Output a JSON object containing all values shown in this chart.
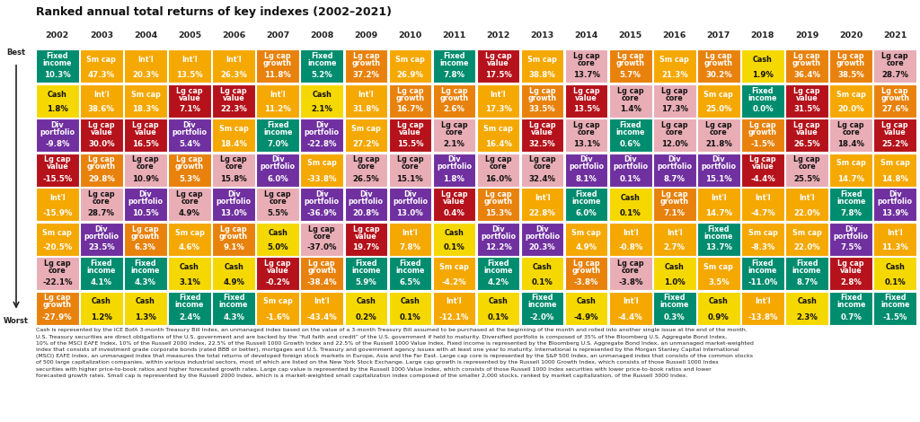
{
  "title": "Ranked annual total returns of key indexes (2002–2021)",
  "years": [
    "2002",
    "2003",
    "2004",
    "2005",
    "2006",
    "2007",
    "2008",
    "2009",
    "2010",
    "2011",
    "2012",
    "2013",
    "2014",
    "2015",
    "2016",
    "2017",
    "2018",
    "2019",
    "2020",
    "2021"
  ],
  "cells": [
    [
      {
        "label": "Fixed\nincome",
        "value": "10.3%",
        "color": "#008c6e"
      },
      {
        "label": "Sm cap",
        "value": "47.3%",
        "color": "#f5a800"
      },
      {
        "label": "Int'l",
        "value": "20.3%",
        "color": "#f5a800"
      },
      {
        "label": "Int'l",
        "value": "13.5%",
        "color": "#f5a800"
      },
      {
        "label": "Int'l",
        "value": "26.3%",
        "color": "#f5a800"
      },
      {
        "label": "Lg cap\ngrowth",
        "value": "11.8%",
        "color": "#e8820c"
      },
      {
        "label": "Fixed\nincome",
        "value": "5.2%",
        "color": "#008c6e"
      },
      {
        "label": "Lg cap\ngrowth",
        "value": "37.2%",
        "color": "#e8820c"
      },
      {
        "label": "Sm cap",
        "value": "26.9%",
        "color": "#f5a800"
      },
      {
        "label": "Fixed\nincome",
        "value": "7.8%",
        "color": "#008c6e"
      },
      {
        "label": "Lg cap\nvalue",
        "value": "17.5%",
        "color": "#b5121b"
      },
      {
        "label": "Sm cap",
        "value": "38.8%",
        "color": "#f5a800"
      },
      {
        "label": "Lg cap\ncore",
        "value": "13.7%",
        "color": "#e8adb5"
      },
      {
        "label": "Lg cap\ngrowth",
        "value": "5.7%",
        "color": "#e8820c"
      },
      {
        "label": "Sm cap",
        "value": "21.3%",
        "color": "#f5a800"
      },
      {
        "label": "Lg cap\ngrowth",
        "value": "30.2%",
        "color": "#e8820c"
      },
      {
        "label": "Cash",
        "value": "1.9%",
        "color": "#f5d800"
      },
      {
        "label": "Lg cap\ngrowth",
        "value": "36.4%",
        "color": "#e8820c"
      },
      {
        "label": "Lg cap\ngrowth",
        "value": "38.5%",
        "color": "#e8820c"
      },
      {
        "label": "Lg cap\ncore",
        "value": "28.7%",
        "color": "#e8adb5"
      }
    ],
    [
      {
        "label": "Cash",
        "value": "1.8%",
        "color": "#f5d800"
      },
      {
        "label": "Int'l",
        "value": "38.6%",
        "color": "#f5a800"
      },
      {
        "label": "Sm cap",
        "value": "18.3%",
        "color": "#f5a800"
      },
      {
        "label": "Lg cap\nvalue",
        "value": "7.1%",
        "color": "#b5121b"
      },
      {
        "label": "Lg cap\nvalue",
        "value": "22.3%",
        "color": "#b5121b"
      },
      {
        "label": "Int'l",
        "value": "11.2%",
        "color": "#f5a800"
      },
      {
        "label": "Cash",
        "value": "2.1%",
        "color": "#f5d800"
      },
      {
        "label": "Int'l",
        "value": "31.8%",
        "color": "#f5a800"
      },
      {
        "label": "Lg cap\ngrowth",
        "value": "16.7%",
        "color": "#e8820c"
      },
      {
        "label": "Lg cap\ngrowth",
        "value": "2.6%",
        "color": "#e8820c"
      },
      {
        "label": "Int'l",
        "value": "17.3%",
        "color": "#f5a800"
      },
      {
        "label": "Lg cap\ngrowth",
        "value": "33.5%",
        "color": "#e8820c"
      },
      {
        "label": "Lg cap\nvalue",
        "value": "13.5%",
        "color": "#b5121b"
      },
      {
        "label": "Lg cap\ncore",
        "value": "1.4%",
        "color": "#e8adb5"
      },
      {
        "label": "Lg cap\ncore",
        "value": "17.3%",
        "color": "#e8adb5"
      },
      {
        "label": "Sm cap",
        "value": "25.0%",
        "color": "#f5a800"
      },
      {
        "label": "Fixed\nincome",
        "value": "0.0%",
        "color": "#008c6e"
      },
      {
        "label": "Lg cap\nvalue",
        "value": "31.5%",
        "color": "#b5121b"
      },
      {
        "label": "Sm cap",
        "value": "20.0%",
        "color": "#f5a800"
      },
      {
        "label": "Lg cap\ngrowth",
        "value": "27.6%",
        "color": "#e8820c"
      }
    ],
    [
      {
        "label": "Div\nportfolio",
        "value": "-9.8%",
        "color": "#7030a0"
      },
      {
        "label": "Lg cap\nvalue",
        "value": "30.0%",
        "color": "#b5121b"
      },
      {
        "label": "Lg cap\nvalue",
        "value": "16.5%",
        "color": "#b5121b"
      },
      {
        "label": "Div\nportfolio",
        "value": "5.4%",
        "color": "#7030a0"
      },
      {
        "label": "Sm cap",
        "value": "18.4%",
        "color": "#f5a800"
      },
      {
        "label": "Fixed\nincome",
        "value": "7.0%",
        "color": "#008c6e"
      },
      {
        "label": "Div\nportfolio",
        "value": "-22.8%",
        "color": "#7030a0"
      },
      {
        "label": "Sm cap",
        "value": "27.2%",
        "color": "#f5a800"
      },
      {
        "label": "Lg cap\nvalue",
        "value": "15.5%",
        "color": "#b5121b"
      },
      {
        "label": "Lg cap\ncore",
        "value": "2.1%",
        "color": "#e8adb5"
      },
      {
        "label": "Sm cap",
        "value": "16.4%",
        "color": "#f5a800"
      },
      {
        "label": "Lg cap\nvalue",
        "value": "32.5%",
        "color": "#b5121b"
      },
      {
        "label": "Lg cap\ncore",
        "value": "13.1%",
        "color": "#e8adb5"
      },
      {
        "label": "Fixed\nincome",
        "value": "0.6%",
        "color": "#008c6e"
      },
      {
        "label": "Lg cap\ncore",
        "value": "12.0%",
        "color": "#e8adb5"
      },
      {
        "label": "Lg cap\ncore",
        "value": "21.8%",
        "color": "#e8adb5"
      },
      {
        "label": "Lg cap\ngrowth",
        "value": "-1.5%",
        "color": "#e8820c"
      },
      {
        "label": "Lg cap\nvalue",
        "value": "26.5%",
        "color": "#b5121b"
      },
      {
        "label": "Lg cap\ncore",
        "value": "18.4%",
        "color": "#e8adb5"
      },
      {
        "label": "Lg cap\nvalue",
        "value": "25.2%",
        "color": "#b5121b"
      }
    ],
    [
      {
        "label": "Lg cap\nvalue",
        "value": "-15.5%",
        "color": "#b5121b"
      },
      {
        "label": "Lg cap\ngrowth",
        "value": "29.8%",
        "color": "#e8820c"
      },
      {
        "label": "Lg cap\ncore",
        "value": "10.9%",
        "color": "#e8adb5"
      },
      {
        "label": "Lg cap\ngrowth",
        "value": "5.3%",
        "color": "#e8820c"
      },
      {
        "label": "Lg cap\ncore",
        "value": "15.8%",
        "color": "#e8adb5"
      },
      {
        "label": "Div\nportfolio",
        "value": "6.0%",
        "color": "#7030a0"
      },
      {
        "label": "Sm cap",
        "value": "-33.8%",
        "color": "#f5a800"
      },
      {
        "label": "Lg cap\ncore",
        "value": "26.5%",
        "color": "#e8adb5"
      },
      {
        "label": "Lg cap\ncore",
        "value": "15.1%",
        "color": "#e8adb5"
      },
      {
        "label": "Div\nportfolio",
        "value": "1.8%",
        "color": "#7030a0"
      },
      {
        "label": "Lg cap\ncore",
        "value": "16.0%",
        "color": "#e8adb5"
      },
      {
        "label": "Lg cap\ncore",
        "value": "32.4%",
        "color": "#e8adb5"
      },
      {
        "label": "Div\nportfolio",
        "value": "8.1%",
        "color": "#7030a0"
      },
      {
        "label": "Div\nportfolio",
        "value": "0.1%",
        "color": "#7030a0"
      },
      {
        "label": "Div\nportfolio",
        "value": "8.7%",
        "color": "#7030a0"
      },
      {
        "label": "Div\nportfolio",
        "value": "15.1%",
        "color": "#7030a0"
      },
      {
        "label": "Lg cap\nvalue",
        "value": "-4.4%",
        "color": "#b5121b"
      },
      {
        "label": "Lg cap\ncore",
        "value": "25.5%",
        "color": "#e8adb5"
      },
      {
        "label": "Sm cap",
        "value": "14.7%",
        "color": "#f5a800"
      },
      {
        "label": "Sm cap",
        "value": "14.8%",
        "color": "#f5a800"
      }
    ],
    [
      {
        "label": "Int'l",
        "value": "-15.9%",
        "color": "#f5a800"
      },
      {
        "label": "Lg cap\ncore",
        "value": "28.7%",
        "color": "#e8adb5"
      },
      {
        "label": "Div\nportfolio",
        "value": "10.5%",
        "color": "#7030a0"
      },
      {
        "label": "Lg cap\ncore",
        "value": "4.9%",
        "color": "#e8adb5"
      },
      {
        "label": "Div\nportfolio",
        "value": "13.0%",
        "color": "#7030a0"
      },
      {
        "label": "Lg cap\ncore",
        "value": "5.5%",
        "color": "#e8adb5"
      },
      {
        "label": "Div\nportfolio",
        "value": "-36.9%",
        "color": "#7030a0"
      },
      {
        "label": "Div\nportfolio",
        "value": "20.8%",
        "color": "#7030a0"
      },
      {
        "label": "Div\nportfolio",
        "value": "13.0%",
        "color": "#7030a0"
      },
      {
        "label": "Lg cap\nvalue",
        "value": "0.4%",
        "color": "#b5121b"
      },
      {
        "label": "Lg cap\ngrowth",
        "value": "15.3%",
        "color": "#e8820c"
      },
      {
        "label": "Int'l",
        "value": "22.8%",
        "color": "#f5a800"
      },
      {
        "label": "Fixed\nincome",
        "value": "6.0%",
        "color": "#008c6e"
      },
      {
        "label": "Cash",
        "value": "0.1%",
        "color": "#f5d800"
      },
      {
        "label": "Lg cap\ngrowth",
        "value": "7.1%",
        "color": "#e8820c"
      },
      {
        "label": "Int'l",
        "value": "14.7%",
        "color": "#f5a800"
      },
      {
        "label": "Int'l",
        "value": "-4.7%",
        "color": "#f5a800"
      },
      {
        "label": "Int'l",
        "value": "22.0%",
        "color": "#f5a800"
      },
      {
        "label": "Fixed\nincome",
        "value": "7.8%",
        "color": "#008c6e"
      },
      {
        "label": "Div\nportfolio",
        "value": "13.9%",
        "color": "#7030a0"
      }
    ],
    [
      {
        "label": "Sm cap",
        "value": "-20.5%",
        "color": "#f5a800"
      },
      {
        "label": "Div\nportfolio",
        "value": "23.5%",
        "color": "#7030a0"
      },
      {
        "label": "Lg cap\ngrowth",
        "value": "6.3%",
        "color": "#e8820c"
      },
      {
        "label": "Sm cap",
        "value": "4.6%",
        "color": "#f5a800"
      },
      {
        "label": "Lg cap\ngrowth",
        "value": "9.1%",
        "color": "#e8820c"
      },
      {
        "label": "Cash",
        "value": "5.0%",
        "color": "#f5d800"
      },
      {
        "label": "Lg cap\ncore",
        "value": "-37.0%",
        "color": "#e8adb5"
      },
      {
        "label": "Lg cap\nvalue",
        "value": "19.7%",
        "color": "#b5121b"
      },
      {
        "label": "Int'l",
        "value": "7.8%",
        "color": "#f5a800"
      },
      {
        "label": "Cash",
        "value": "0.1%",
        "color": "#f5d800"
      },
      {
        "label": "Div\nportfolio",
        "value": "12.2%",
        "color": "#7030a0"
      },
      {
        "label": "Div\nportfolio",
        "value": "20.3%",
        "color": "#7030a0"
      },
      {
        "label": "Sm cap",
        "value": "4.9%",
        "color": "#f5a800"
      },
      {
        "label": "Int'l",
        "value": "-0.8%",
        "color": "#f5a800"
      },
      {
        "label": "Int'l",
        "value": "2.7%",
        "color": "#f5a800"
      },
      {
        "label": "Fixed\nincome",
        "value": "13.7%",
        "color": "#008c6e"
      },
      {
        "label": "Sm cap",
        "value": "-8.3%",
        "color": "#f5a800"
      },
      {
        "label": "Sm cap",
        "value": "22.0%",
        "color": "#f5a800"
      },
      {
        "label": "Div\nportfolio",
        "value": "7.5%",
        "color": "#7030a0"
      },
      {
        "label": "Int'l",
        "value": "11.3%",
        "color": "#f5a800"
      }
    ],
    [
      {
        "label": "Lg cap\ncore",
        "value": "-22.1%",
        "color": "#e8adb5"
      },
      {
        "label": "Fixed\nincome",
        "value": "4.1%",
        "color": "#008c6e"
      },
      {
        "label": "Fixed\nincome",
        "value": "4.3%",
        "color": "#008c6e"
      },
      {
        "label": "Cash",
        "value": "3.1%",
        "color": "#f5d800"
      },
      {
        "label": "Cash",
        "value": "4.9%",
        "color": "#f5d800"
      },
      {
        "label": "Lg cap\nvalue",
        "value": "-0.2%",
        "color": "#b5121b"
      },
      {
        "label": "Lg cap\ngrowth",
        "value": "-38.4%",
        "color": "#e8820c"
      },
      {
        "label": "Fixed\nincome",
        "value": "5.9%",
        "color": "#008c6e"
      },
      {
        "label": "Fixed\nincome",
        "value": "6.5%",
        "color": "#008c6e"
      },
      {
        "label": "Sm cap",
        "value": "-4.2%",
        "color": "#f5a800"
      },
      {
        "label": "Fixed\nincome",
        "value": "4.2%",
        "color": "#008c6e"
      },
      {
        "label": "Cash",
        "value": "0.1%",
        "color": "#f5d800"
      },
      {
        "label": "Lg cap\ngrowth",
        "value": "-3.8%",
        "color": "#e8820c"
      },
      {
        "label": "Lg cap\ncore",
        "value": "-3.8%",
        "color": "#e8adb5"
      },
      {
        "label": "Cash",
        "value": "1.0%",
        "color": "#f5d800"
      },
      {
        "label": "Sm cap",
        "value": "3.5%",
        "color": "#f5a800"
      },
      {
        "label": "Fixed\nincome",
        "value": "-11.0%",
        "color": "#008c6e"
      },
      {
        "label": "Fixed\nincome",
        "value": "8.7%",
        "color": "#008c6e"
      },
      {
        "label": "Lg cap\nvalue",
        "value": "2.8%",
        "color": "#b5121b"
      },
      {
        "label": "Cash",
        "value": "0.1%",
        "color": "#f5d800"
      }
    ],
    [
      {
        "label": "Lg cap\ngrowth",
        "value": "-27.9%",
        "color": "#e8820c"
      },
      {
        "label": "Cash",
        "value": "1.2%",
        "color": "#f5d800"
      },
      {
        "label": "Cash",
        "value": "1.3%",
        "color": "#f5d800"
      },
      {
        "label": "Fixed\nincome",
        "value": "2.4%",
        "color": "#008c6e"
      },
      {
        "label": "Fixed\nincome",
        "value": "4.3%",
        "color": "#008c6e"
      },
      {
        "label": "Sm cap",
        "value": "-1.6%",
        "color": "#f5a800"
      },
      {
        "label": "Int'l",
        "value": "-43.4%",
        "color": "#f5a800"
      },
      {
        "label": "Cash",
        "value": "0.2%",
        "color": "#f5d800"
      },
      {
        "label": "Cash",
        "value": "0.1%",
        "color": "#f5d800"
      },
      {
        "label": "Int'l",
        "value": "-12.1%",
        "color": "#f5a800"
      },
      {
        "label": "Cash",
        "value": "0.1%",
        "color": "#f5d800"
      },
      {
        "label": "Fixed\nincome",
        "value": "-2.0%",
        "color": "#008c6e"
      },
      {
        "label": "Cash",
        "value": "-4.9%",
        "color": "#f5d800"
      },
      {
        "label": "Int'l",
        "value": "-4.4%",
        "color": "#f5a800"
      },
      {
        "label": "Fixed\nincome",
        "value": "0.3%",
        "color": "#008c6e"
      },
      {
        "label": "Cash",
        "value": "0.9%",
        "color": "#f5d800"
      },
      {
        "label": "Int'l",
        "value": "-13.8%",
        "color": "#f5a800"
      },
      {
        "label": "Cash",
        "value": "2.3%",
        "color": "#f5d800"
      },
      {
        "label": "Fixed\nincome",
        "value": "0.7%",
        "color": "#008c6e"
      },
      {
        "label": "Fixed\nincome",
        "value": "-1.5%",
        "color": "#008c6e"
      }
    ]
  ],
  "footnote_parts": [
    {
      "text": "Cash",
      "bold": true
    },
    {
      "text": " is represented by the ICE BofA 3-month Treasury Bill Index, an unmanaged index based on the value of a 3-month Treasury Bill assumed to be purchased at the beginning of the month and rolled into another single issue at the end of the month. U.S. Treasury securities are direct obligations of the U.S. government and are backed by the “full faith and credit” of the U.S. government if held to maturity. ",
      "bold": false
    },
    {
      "text": "Diversified portfolio",
      "bold": true
    },
    {
      "text": " is composed of 35% of the Bloomberg U.S. Aggregate Bond Index, 10% of the MSCI EAFE Index, 10% of the Russell 2000 Index, 22.5% of the Russell 1000 Growth Index and 22.5% of the Russell 1000 Value Index. ",
      "bold": false
    },
    {
      "text": "Fixed income",
      "bold": true
    },
    {
      "text": " is represented by the Bloomberg U.S. Aggregate Bond Index, an unmanaged market-weighted index that consists of investment grade corporate bonds (rated BBB or better), mortgages and U.S. Treasury and government agency issues with at least one year to maturity. ",
      "bold": false
    },
    {
      "text": "International",
      "bold": true
    },
    {
      "text": " is represented by the Morgan Stanley Capital International (MSCI) EAFE Index, an unmanaged index that measures the total returns of developed foreign stock markets in Europe, Asia and the Far East. ",
      "bold": false
    },
    {
      "text": "Large cap core",
      "bold": true
    },
    {
      "text": " is represented by the S&P 500 Index, an unmanaged index that consists of the common stocks of 500 large capitalization companies, within various industrial sectors, most of which are listed on the New York Stock Exchange. ",
      "bold": false
    },
    {
      "text": "Large cap growth",
      "bold": true
    },
    {
      "text": " is represented by the Russell 1000 Growth Index, which consists of those Russell 1000 Index securities with higher price-to-book ratios and higher forecasted growth rates. ",
      "bold": false
    },
    {
      "text": "Large cap value",
      "bold": true
    },
    {
      "text": " is represented by the Russell 1000 Value Index, which consists of those Russell 1000 Index securities with lower price-to-book ratios and lower forecasted growth rates. ",
      "bold": false
    },
    {
      "text": "Small cap",
      "bold": true
    },
    {
      "text": " is represented by the Russell 2000 Index, which is a market-weighted small capitalization index composed of the smaller 2,000 stocks, ranked by market capitalization, of the Russell 3000 Index.",
      "bold": false
    }
  ]
}
